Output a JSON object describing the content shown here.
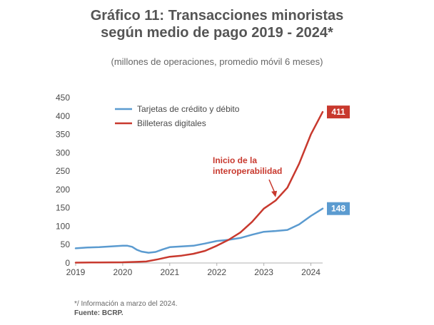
{
  "title_line1": "Gráfico 11: Transacciones minoristas",
  "title_line2": "según medio de pago 2019 - 2024*",
  "subtitle": "(millones de operaciones, promedio móvil 6 meses)",
  "footnote": "*/ Información a marzo del 2024.",
  "source": "Fuente: BCRP.",
  "chart_data": {
    "type": "line",
    "title": "Gráfico 11: Transacciones minoristas según medio de pago 2019 - 2024*",
    "subtitle": "(millones de operaciones, promedio móvil 6 meses)",
    "xlabel": "",
    "ylabel": "",
    "ylim": [
      0,
      450
    ],
    "yticks": [
      0,
      50,
      100,
      150,
      200,
      250,
      300,
      350,
      400,
      450
    ],
    "xlim": [
      2019.0,
      2024.25
    ],
    "xticks": [
      "2019",
      "2020",
      "2021",
      "2022",
      "2023",
      "2024"
    ],
    "grid": false,
    "legend_position": "top-left",
    "series": [
      {
        "name": "Tarjetas de crédito y débito",
        "color": "#5b9bd0",
        "end_label": "148",
        "points": [
          [
            2019.0,
            40
          ],
          [
            2019.25,
            42
          ],
          [
            2019.5,
            43
          ],
          [
            2019.75,
            45
          ],
          [
            2020.0,
            47
          ],
          [
            2020.1,
            47
          ],
          [
            2020.2,
            44
          ],
          [
            2020.3,
            36
          ],
          [
            2020.4,
            31
          ],
          [
            2020.55,
            28
          ],
          [
            2020.7,
            30
          ],
          [
            2020.85,
            37
          ],
          [
            2021.0,
            43
          ],
          [
            2021.25,
            45
          ],
          [
            2021.5,
            47
          ],
          [
            2021.75,
            53
          ],
          [
            2022.0,
            60
          ],
          [
            2022.25,
            63
          ],
          [
            2022.5,
            68
          ],
          [
            2022.75,
            77
          ],
          [
            2023.0,
            85
          ],
          [
            2023.25,
            87
          ],
          [
            2023.5,
            90
          ],
          [
            2023.75,
            105
          ],
          [
            2024.0,
            128
          ],
          [
            2024.15,
            140
          ],
          [
            2024.25,
            148
          ]
        ]
      },
      {
        "name": "Billeteras digitales",
        "color": "#c8392e",
        "end_label": "411",
        "points": [
          [
            2019.0,
            1
          ],
          [
            2019.5,
            1.5
          ],
          [
            2020.0,
            2
          ],
          [
            2020.25,
            3
          ],
          [
            2020.5,
            4
          ],
          [
            2020.75,
            10
          ],
          [
            2021.0,
            17
          ],
          [
            2021.25,
            20
          ],
          [
            2021.5,
            25
          ],
          [
            2021.75,
            33
          ],
          [
            2022.0,
            47
          ],
          [
            2022.25,
            63
          ],
          [
            2022.5,
            83
          ],
          [
            2022.75,
            112
          ],
          [
            2023.0,
            148
          ],
          [
            2023.25,
            170
          ],
          [
            2023.5,
            205
          ],
          [
            2023.75,
            270
          ],
          [
            2024.0,
            350
          ],
          [
            2024.25,
            411
          ]
        ]
      }
    ],
    "annotations": [
      {
        "text": [
          "Inicio de la",
          "interoperabilidad"
        ],
        "x": 2023.25,
        "y": 175
      }
    ]
  }
}
